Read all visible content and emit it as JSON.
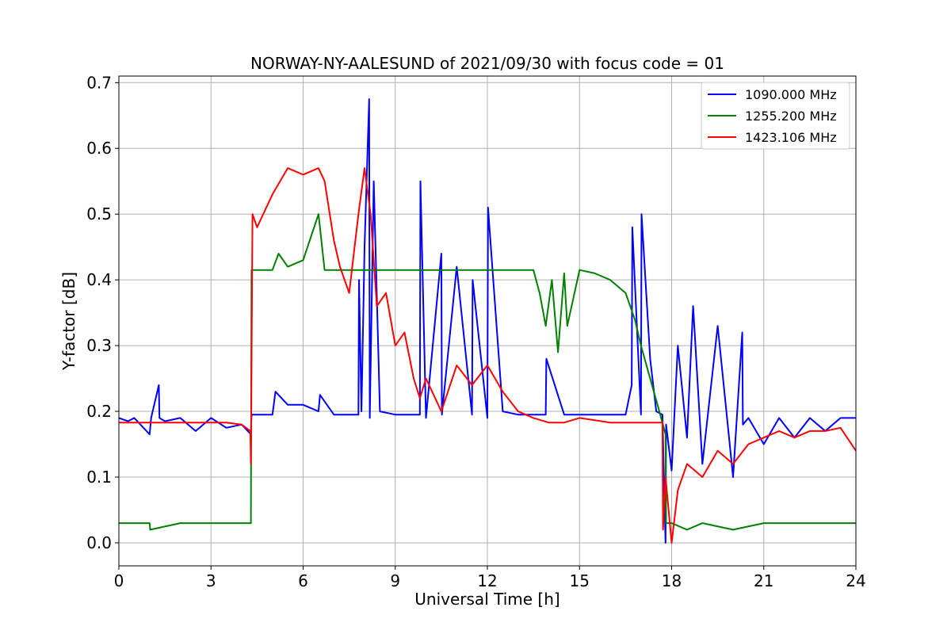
{
  "chart_data": {
    "type": "line",
    "title": "NORWAY-NY-AALESUND of 2021/09/30 with focus code = 01",
    "xlabel": "Universal Time [h]",
    "ylabel": "Y-factor [dB]",
    "xlim": [
      0,
      24
    ],
    "ylim": [
      -0.035,
      0.71
    ],
    "xticks": [
      0,
      3,
      6,
      9,
      12,
      15,
      18,
      21,
      24
    ],
    "xtick_labels": [
      "0",
      "3",
      "6",
      "9",
      "12",
      "15",
      "18",
      "21",
      "24"
    ],
    "yticks": [
      0.0,
      0.1,
      0.2,
      0.3,
      0.4,
      0.5,
      0.6,
      0.7
    ],
    "ytick_labels": [
      "0.0",
      "0.1",
      "0.2",
      "0.3",
      "0.4",
      "0.5",
      "0.6",
      "0.7"
    ],
    "grid": true,
    "legend_position": "top-right",
    "series": [
      {
        "name": "1090.000 MHz",
        "color": "#0000ff",
        "x": [
          0.0,
          0.3,
          0.5,
          1.0,
          1.05,
          1.3,
          1.32,
          1.5,
          2.0,
          2.5,
          3.0,
          3.5,
          4.0,
          4.3,
          4.32,
          5.0,
          5.1,
          5.5,
          6.0,
          6.5,
          6.55,
          7.0,
          7.5,
          7.8,
          7.82,
          7.9,
          8.0,
          8.15,
          8.17,
          8.3,
          8.5,
          9.0,
          9.5,
          9.8,
          9.82,
          10.0,
          10.5,
          10.52,
          11.0,
          11.5,
          11.52,
          12.0,
          12.02,
          12.5,
          13.0,
          13.5,
          13.9,
          13.92,
          14.5,
          15.0,
          15.5,
          16.0,
          16.5,
          16.7,
          16.72,
          17.0,
          17.02,
          17.3,
          17.5,
          17.7,
          17.8,
          17.82,
          18.0,
          18.2,
          18.5,
          18.7,
          19.0,
          19.5,
          20.0,
          20.3,
          20.32,
          20.5,
          21.0,
          21.5,
          22.0,
          22.5,
          23.0,
          23.5,
          24.0
        ],
        "y": [
          0.19,
          0.185,
          0.19,
          0.165,
          0.19,
          0.24,
          0.19,
          0.185,
          0.19,
          0.17,
          0.19,
          0.175,
          0.18,
          0.165,
          0.195,
          0.195,
          0.23,
          0.21,
          0.21,
          0.2,
          0.225,
          0.195,
          0.195,
          0.195,
          0.4,
          0.2,
          0.45,
          0.675,
          0.19,
          0.55,
          0.2,
          0.195,
          0.195,
          0.195,
          0.55,
          0.19,
          0.44,
          0.195,
          0.42,
          0.195,
          0.4,
          0.19,
          0.51,
          0.2,
          0.195,
          0.195,
          0.195,
          0.28,
          0.195,
          0.195,
          0.195,
          0.195,
          0.195,
          0.24,
          0.48,
          0.195,
          0.5,
          0.28,
          0.2,
          0.195,
          0.0,
          0.18,
          0.11,
          0.3,
          0.16,
          0.36,
          0.12,
          0.33,
          0.1,
          0.32,
          0.18,
          0.19,
          0.15,
          0.19,
          0.16,
          0.19,
          0.17,
          0.19,
          0.19
        ]
      },
      {
        "name": "1255.200 MHz",
        "color": "#008000",
        "x": [
          0.0,
          1.0,
          1.02,
          2.0,
          3.0,
          4.3,
          4.32,
          4.4,
          5.0,
          5.2,
          5.5,
          6.0,
          6.5,
          6.7,
          7.0,
          7.5,
          8.0,
          9.0,
          10.0,
          10.5,
          11.0,
          12.0,
          13.0,
          13.5,
          13.7,
          13.9,
          14.1,
          14.3,
          14.5,
          14.6,
          15.0,
          15.5,
          16.0,
          16.5,
          16.8,
          17.0,
          17.3,
          17.6,
          17.8,
          17.82,
          18.0,
          18.5,
          19.0,
          20.0,
          21.0,
          22.0,
          23.0,
          24.0
        ],
        "y": [
          0.03,
          0.03,
          0.02,
          0.03,
          0.03,
          0.03,
          0.415,
          0.415,
          0.415,
          0.44,
          0.42,
          0.43,
          0.5,
          0.415,
          0.415,
          0.415,
          0.415,
          0.415,
          0.415,
          0.415,
          0.415,
          0.415,
          0.415,
          0.415,
          0.38,
          0.33,
          0.4,
          0.29,
          0.41,
          0.33,
          0.415,
          0.41,
          0.4,
          0.38,
          0.34,
          0.3,
          0.25,
          0.2,
          0.165,
          0.03,
          0.03,
          0.02,
          0.03,
          0.02,
          0.03,
          0.03,
          0.03,
          0.03
        ]
      },
      {
        "name": "1423.106 MHz",
        "color": "#ff0000",
        "x": [
          0.0,
          1.0,
          2.0,
          3.0,
          3.5,
          4.0,
          4.28,
          4.3,
          4.35,
          4.5,
          5.0,
          5.5,
          6.0,
          6.5,
          6.7,
          7.0,
          7.2,
          7.5,
          7.8,
          8.0,
          8.2,
          8.4,
          8.7,
          9.0,
          9.3,
          9.6,
          9.8,
          10.0,
          10.5,
          11.0,
          11.5,
          12.0,
          12.5,
          13.0,
          13.5,
          14.0,
          14.5,
          15.0,
          16.0,
          17.0,
          17.7,
          17.72,
          17.8,
          18.0,
          18.2,
          18.5,
          19.0,
          19.5,
          20.0,
          20.5,
          21.0,
          21.5,
          22.0,
          22.5,
          23.0,
          23.5,
          24.0
        ],
        "y": [
          0.183,
          0.183,
          0.183,
          0.183,
          0.183,
          0.18,
          0.17,
          0.12,
          0.5,
          0.48,
          0.53,
          0.57,
          0.56,
          0.57,
          0.55,
          0.46,
          0.42,
          0.38,
          0.5,
          0.57,
          0.5,
          0.36,
          0.38,
          0.3,
          0.32,
          0.25,
          0.22,
          0.25,
          0.2,
          0.27,
          0.24,
          0.27,
          0.23,
          0.2,
          0.19,
          0.183,
          0.183,
          0.19,
          0.183,
          0.183,
          0.183,
          0.02,
          0.1,
          0.0,
          0.08,
          0.12,
          0.1,
          0.14,
          0.12,
          0.15,
          0.16,
          0.17,
          0.16,
          0.17,
          0.17,
          0.175,
          0.14
        ]
      }
    ]
  }
}
